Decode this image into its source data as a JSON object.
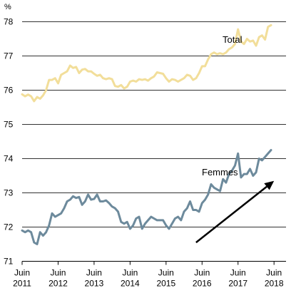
{
  "chart_data": {
    "type": "line",
    "y_unit": "%",
    "ylim": [
      71,
      78
    ],
    "y_ticks": [
      "71",
      "72",
      "73",
      "74",
      "75",
      "76",
      "77",
      "78"
    ],
    "x_range": [
      "2011-06",
      "2018-10"
    ],
    "x_ticks": [
      {
        "date": "2011-06",
        "label": [
          "Juin",
          "2011"
        ]
      },
      {
        "date": "2012-06",
        "label": [
          "Juin",
          "2012"
        ]
      },
      {
        "date": "2013-06",
        "label": [
          "Juin",
          "2013"
        ]
      },
      {
        "date": "2014-06",
        "label": [
          "Juin",
          "2014"
        ]
      },
      {
        "date": "2015-06",
        "label": [
          "Juin",
          "2015"
        ]
      },
      {
        "date": "2016-06",
        "label": [
          "Juin",
          "2016"
        ]
      },
      {
        "date": "2017-06",
        "label": [
          "Juin",
          "2017"
        ]
      },
      {
        "date": "2018-06",
        "label": [
          "Juin",
          "2018"
        ]
      }
    ],
    "grid": "horizontal",
    "series": [
      {
        "name": "Total",
        "color": "#F2DE9A",
        "points": [
          [
            "2011-06",
            75.88
          ],
          [
            "2011-07",
            75.82
          ],
          [
            "2011-08",
            75.87
          ],
          [
            "2011-09",
            75.82
          ],
          [
            "2011-10",
            75.68
          ],
          [
            "2011-11",
            75.8
          ],
          [
            "2011-12",
            75.75
          ],
          [
            "2012-01",
            75.85
          ],
          [
            "2012-02",
            76.0
          ],
          [
            "2012-03",
            76.3
          ],
          [
            "2012-04",
            76.3
          ],
          [
            "2012-05",
            76.35
          ],
          [
            "2012-06",
            76.2
          ],
          [
            "2012-07",
            76.45
          ],
          [
            "2012-08",
            76.5
          ],
          [
            "2012-09",
            76.55
          ],
          [
            "2012-10",
            76.72
          ],
          [
            "2012-11",
            76.65
          ],
          [
            "2012-12",
            76.68
          ],
          [
            "2013-01",
            76.5
          ],
          [
            "2013-02",
            76.6
          ],
          [
            "2013-03",
            76.62
          ],
          [
            "2013-04",
            76.55
          ],
          [
            "2013-05",
            76.55
          ],
          [
            "2013-06",
            76.48
          ],
          [
            "2013-07",
            76.42
          ],
          [
            "2013-08",
            76.45
          ],
          [
            "2013-09",
            76.35
          ],
          [
            "2013-10",
            76.32
          ],
          [
            "2013-11",
            76.35
          ],
          [
            "2013-12",
            76.32
          ],
          [
            "2014-01",
            76.12
          ],
          [
            "2014-02",
            76.1
          ],
          [
            "2014-03",
            76.15
          ],
          [
            "2014-04",
            76.05
          ],
          [
            "2014-05",
            76.1
          ],
          [
            "2014-06",
            76.25
          ],
          [
            "2014-07",
            76.28
          ],
          [
            "2014-08",
            76.25
          ],
          [
            "2014-09",
            76.32
          ],
          [
            "2014-10",
            76.3
          ],
          [
            "2014-11",
            76.32
          ],
          [
            "2014-12",
            76.28
          ],
          [
            "2015-01",
            76.35
          ],
          [
            "2015-02",
            76.4
          ],
          [
            "2015-03",
            76.52
          ],
          [
            "2015-04",
            76.5
          ],
          [
            "2015-05",
            76.48
          ],
          [
            "2015-06",
            76.35
          ],
          [
            "2015-07",
            76.25
          ],
          [
            "2015-08",
            76.32
          ],
          [
            "2015-09",
            76.3
          ],
          [
            "2015-10",
            76.25
          ],
          [
            "2015-11",
            76.3
          ],
          [
            "2015-12",
            76.35
          ],
          [
            "2016-01",
            76.45
          ],
          [
            "2016-02",
            76.42
          ],
          [
            "2016-03",
            76.3
          ],
          [
            "2016-04",
            76.35
          ],
          [
            "2016-05",
            76.5
          ],
          [
            "2016-06",
            76.7
          ],
          [
            "2016-07",
            76.7
          ],
          [
            "2016-08",
            76.9
          ],
          [
            "2016-09",
            77.05
          ],
          [
            "2016-10",
            77.1
          ],
          [
            "2016-11",
            77.05
          ],
          [
            "2016-12",
            77.08
          ],
          [
            "2017-01",
            77.05
          ],
          [
            "2017-02",
            77.1
          ],
          [
            "2017-03",
            77.2
          ],
          [
            "2017-04",
            77.25
          ],
          [
            "2017-05",
            77.35
          ],
          [
            "2017-06",
            77.78
          ],
          [
            "2017-07",
            77.42
          ],
          [
            "2017-08",
            77.35
          ],
          [
            "2017-09",
            77.5
          ],
          [
            "2017-10",
            77.42
          ],
          [
            "2017-11",
            77.45
          ],
          [
            "2017-12",
            77.3
          ],
          [
            "2018-01",
            77.55
          ],
          [
            "2018-02",
            77.6
          ],
          [
            "2018-03",
            77.48
          ],
          [
            "2018-04",
            77.85
          ],
          [
            "2018-05",
            77.9
          ]
        ]
      },
      {
        "name": "Femmes",
        "color": "#6D8A9C",
        "points": [
          [
            "2011-06",
            71.9
          ],
          [
            "2011-07",
            71.85
          ],
          [
            "2011-08",
            71.9
          ],
          [
            "2011-09",
            71.85
          ],
          [
            "2011-10",
            71.55
          ],
          [
            "2011-11",
            71.5
          ],
          [
            "2011-12",
            71.85
          ],
          [
            "2012-01",
            71.75
          ],
          [
            "2012-02",
            71.85
          ],
          [
            "2012-03",
            72.05
          ],
          [
            "2012-04",
            72.4
          ],
          [
            "2012-05",
            72.3
          ],
          [
            "2012-06",
            72.35
          ],
          [
            "2012-07",
            72.4
          ],
          [
            "2012-08",
            72.55
          ],
          [
            "2012-09",
            72.75
          ],
          [
            "2012-10",
            72.8
          ],
          [
            "2012-11",
            72.9
          ],
          [
            "2012-12",
            72.85
          ],
          [
            "2013-01",
            72.88
          ],
          [
            "2013-02",
            72.65
          ],
          [
            "2013-03",
            72.75
          ],
          [
            "2013-04",
            72.95
          ],
          [
            "2013-05",
            72.8
          ],
          [
            "2013-06",
            72.82
          ],
          [
            "2013-07",
            72.95
          ],
          [
            "2013-08",
            72.75
          ],
          [
            "2013-09",
            72.75
          ],
          [
            "2013-10",
            72.78
          ],
          [
            "2013-11",
            72.7
          ],
          [
            "2013-12",
            72.6
          ],
          [
            "2014-01",
            72.55
          ],
          [
            "2014-02",
            72.45
          ],
          [
            "2014-03",
            72.15
          ],
          [
            "2014-04",
            72.1
          ],
          [
            "2014-05",
            72.15
          ],
          [
            "2014-06",
            71.95
          ],
          [
            "2014-07",
            72.05
          ],
          [
            "2014-08",
            72.25
          ],
          [
            "2014-09",
            72.3
          ],
          [
            "2014-10",
            71.95
          ],
          [
            "2014-11",
            72.1
          ],
          [
            "2014-12",
            72.2
          ],
          [
            "2015-01",
            72.3
          ],
          [
            "2015-02",
            72.25
          ],
          [
            "2015-03",
            72.2
          ],
          [
            "2015-04",
            72.2
          ],
          [
            "2015-05",
            72.2
          ],
          [
            "2015-06",
            72.05
          ],
          [
            "2015-07",
            71.95
          ],
          [
            "2015-08",
            72.1
          ],
          [
            "2015-09",
            72.25
          ],
          [
            "2015-10",
            72.3
          ],
          [
            "2015-11",
            72.2
          ],
          [
            "2015-12",
            72.45
          ],
          [
            "2016-01",
            72.55
          ],
          [
            "2016-02",
            72.75
          ],
          [
            "2016-03",
            72.5
          ],
          [
            "2016-04",
            72.5
          ],
          [
            "2016-05",
            72.45
          ],
          [
            "2016-06",
            72.7
          ],
          [
            "2016-07",
            72.8
          ],
          [
            "2016-08",
            72.95
          ],
          [
            "2016-09",
            73.25
          ],
          [
            "2016-10",
            73.15
          ],
          [
            "2016-11",
            73.1
          ],
          [
            "2016-12",
            73.05
          ],
          [
            "2017-01",
            73.4
          ],
          [
            "2017-02",
            73.3
          ],
          [
            "2017-03",
            73.55
          ],
          [
            "2017-04",
            73.65
          ],
          [
            "2017-05",
            73.8
          ],
          [
            "2017-06",
            74.15
          ],
          [
            "2017-07",
            73.45
          ],
          [
            "2017-08",
            73.55
          ],
          [
            "2017-09",
            73.55
          ],
          [
            "2017-10",
            73.7
          ],
          [
            "2017-11",
            73.5
          ],
          [
            "2017-12",
            73.6
          ],
          [
            "2018-01",
            74.0
          ],
          [
            "2018-02",
            73.95
          ],
          [
            "2018-03",
            74.05
          ],
          [
            "2018-04",
            74.15
          ],
          [
            "2018-05",
            74.25
          ]
        ]
      }
    ],
    "arrow": {
      "from": [
        "2016-04",
        71.55
      ],
      "to": [
        "2018-06",
        73.35
      ],
      "color": "#000000"
    }
  }
}
